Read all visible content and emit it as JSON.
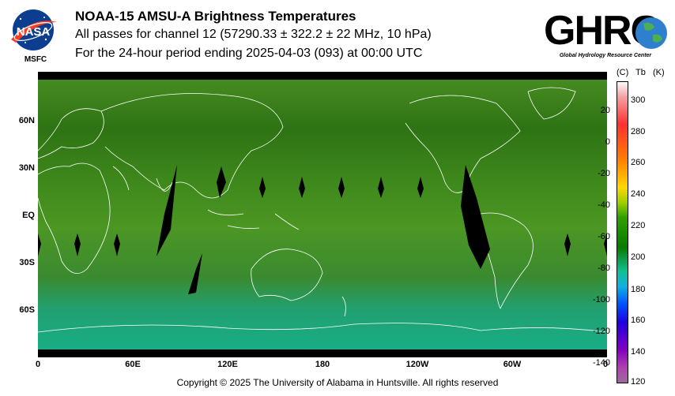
{
  "header": {
    "line1": "NOAA-15 AMSU-A Brightness Temperatures",
    "line2": "All passes for channel 12 (57290.33 ± 322.2 ± 22 MHz, 10 hPa)",
    "line3": "For the 24-hour period ending 2025-04-03 (093) at 00:00 UTC"
  },
  "logos": {
    "nasa_text": "NASA",
    "msfc_text": "MSFC",
    "ghrc_text": "GHRC",
    "ghrc_subtitle": "Global Hydrology Resource Center"
  },
  "map": {
    "lat_labels": [
      "60N",
      "30N",
      "EQ",
      "30S",
      "60S"
    ],
    "lon_labels": [
      "0",
      "60E",
      "120E",
      "180",
      "120W",
      "60W",
      "0"
    ]
  },
  "colorbar": {
    "unit_c": "(C)",
    "label_tb": "Tb",
    "unit_k": "(K)",
    "celsius_ticks": [
      "20",
      "0",
      "-20",
      "-40",
      "-60",
      "-80",
      "-100",
      "-120",
      "-140"
    ],
    "kelvin_ticks": [
      "300",
      "280",
      "260",
      "240",
      "220",
      "200",
      "180",
      "160",
      "140",
      "120"
    ]
  },
  "footer": {
    "copyright": "Copyright © 2025 The University of Alabama in Huntsville.  All rights reserved"
  },
  "colors": {
    "ocean_green": "#3f8f1e",
    "dark_green": "#2a6e12",
    "southern_teal": "#1fa37a",
    "coastline": "#ffffff",
    "gap": "#000000"
  }
}
